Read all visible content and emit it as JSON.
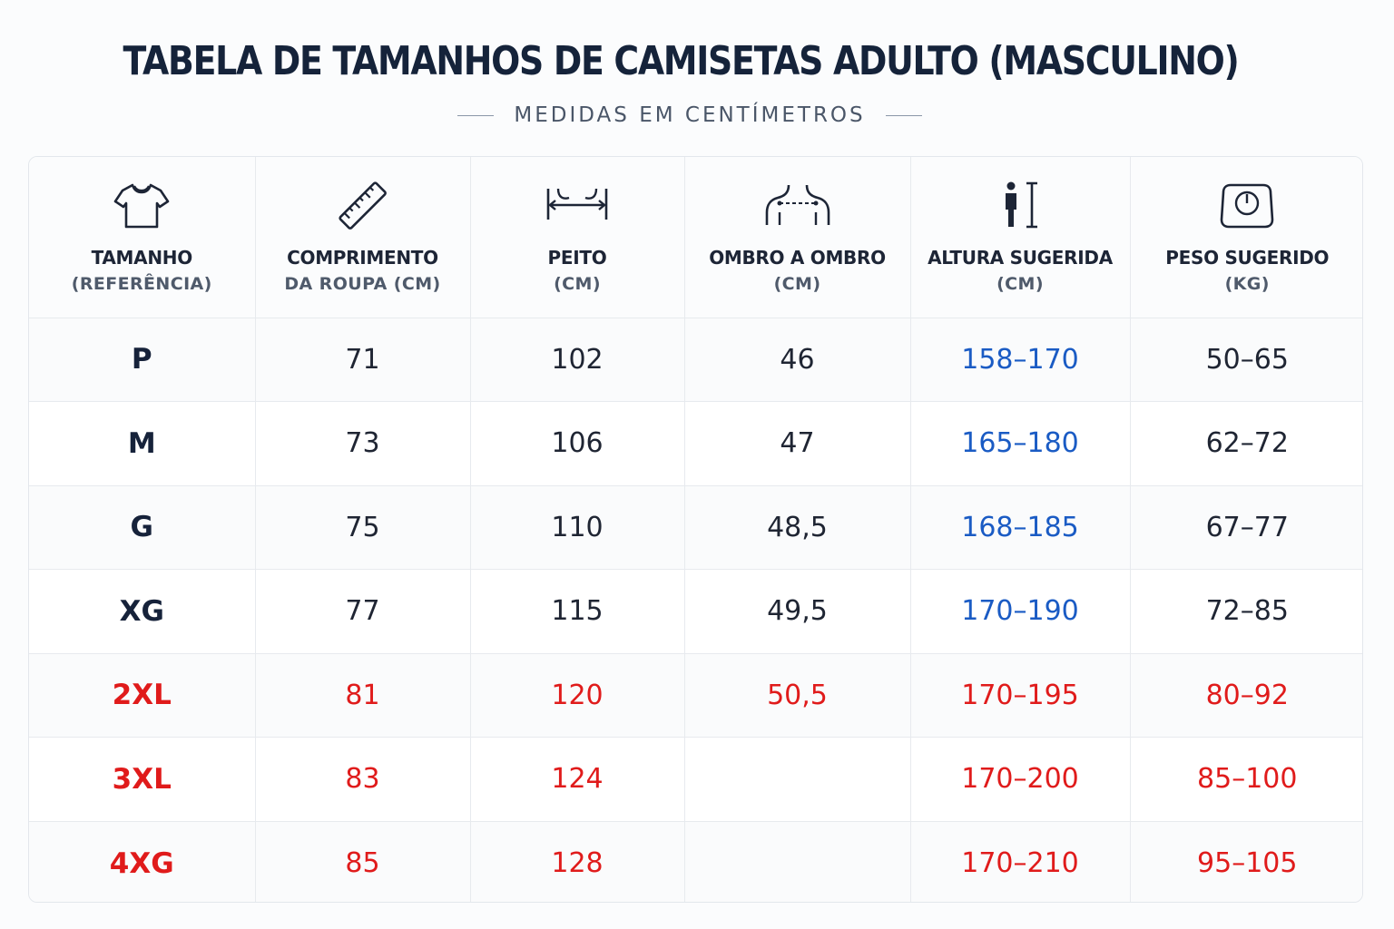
{
  "title": "TABELA DE TAMANHOS DE CAMISETAS ADULTO (MASCULINO)",
  "subtitle": "MEDIDAS EM CENTÍMETROS",
  "colors": {
    "title": "#15233a",
    "text": "#1f2533",
    "height_blue": "#1a5bc4",
    "large_sizes_red": "#e01b1b",
    "border": "#e7eaee"
  },
  "columns": [
    {
      "icon": "t-shirt-icon",
      "label": "TAMANHO",
      "sub": "(REFERÊNCIA)"
    },
    {
      "icon": "ruler-icon",
      "label": "COMPRIMENTO",
      "sub": "DA ROUPA (CM)"
    },
    {
      "icon": "chest-width-icon",
      "label": "PEITO",
      "sub": "(CM)"
    },
    {
      "icon": "shoulders-icon",
      "label": "OMBRO A OMBRO",
      "sub": "(CM)"
    },
    {
      "icon": "person-height-icon",
      "label": "ALTURA SUGERIDA",
      "sub": "(CM)"
    },
    {
      "icon": "scale-icon",
      "label": "PESO SUGERIDO",
      "sub": "(KG)"
    }
  ],
  "rows": [
    {
      "size": "P",
      "length": "71",
      "chest": "102",
      "shoulder": "46",
      "height": "158–170",
      "weight": "50–65"
    },
    {
      "size": "M",
      "length": "73",
      "chest": "106",
      "shoulder": "47",
      "height": "165–180",
      "weight": "62–72"
    },
    {
      "size": "G",
      "length": "75",
      "chest": "110",
      "shoulder": "48,5",
      "height": "168–185",
      "weight": "67–77"
    },
    {
      "size": "XG",
      "length": "77",
      "chest": "115",
      "shoulder": "49,5",
      "height": "170–190",
      "weight": "72–85"
    },
    {
      "size": "2XL",
      "length": "81",
      "chest": "120",
      "shoulder": "50,5",
      "height": "170–195",
      "weight": "80–92"
    },
    {
      "size": "3XL",
      "length": "83",
      "chest": "124",
      "shoulder": "",
      "height": "170–200",
      "weight": "85–100"
    },
    {
      "size": "4XG",
      "length": "85",
      "chest": "128",
      "shoulder": "",
      "height": "170–210",
      "weight": "95–105"
    }
  ]
}
